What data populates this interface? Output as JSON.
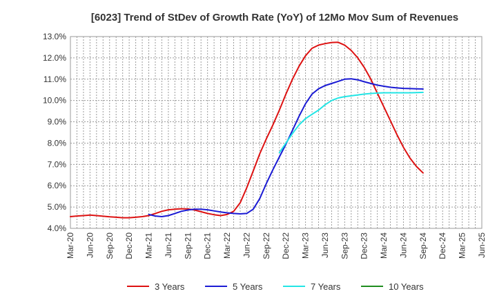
{
  "chart_data": {
    "type": "line",
    "title": "[6023]  Trend of StDev of Growth Rate (YoY) of 12Mo Mov Sum of Revenues",
    "xlabel": "",
    "ylabel": "",
    "ylim": [
      4.0,
      13.0
    ],
    "grid": true,
    "legend_position": "bottom",
    "y_ticks": [
      "4.0%",
      "5.0%",
      "6.0%",
      "7.0%",
      "8.0%",
      "9.0%",
      "10.0%",
      "11.0%",
      "12.0%",
      "13.0%"
    ],
    "x_ticks": [
      "Mar-20",
      "Jun-20",
      "Sep-20",
      "Dec-20",
      "Mar-21",
      "Jun-21",
      "Sep-21",
      "Dec-21",
      "Mar-22",
      "Jun-22",
      "Sep-22",
      "Dec-22",
      "Mar-23",
      "Jun-23",
      "Sep-23",
      "Dec-23",
      "Mar-24",
      "Jun-24",
      "Sep-24",
      "Dec-24",
      "Mar-25",
      "Jun-25"
    ],
    "series": [
      {
        "name": "3 Years",
        "color": "#dd1111",
        "start_index": 0,
        "values": [
          4.55,
          4.58,
          4.6,
          4.62,
          4.6,
          4.57,
          4.54,
          4.52,
          4.5,
          4.5,
          4.52,
          4.55,
          4.6,
          4.7,
          4.8,
          4.87,
          4.9,
          4.92,
          4.91,
          4.86,
          4.78,
          4.7,
          4.64,
          4.6,
          4.65,
          4.8,
          5.2,
          5.9,
          6.7,
          7.5,
          8.2,
          8.85,
          9.55,
          10.3,
          11.0,
          11.6,
          12.1,
          12.45,
          12.6,
          12.67,
          12.72,
          12.73,
          12.6,
          12.35,
          12.0,
          11.55,
          11.0,
          10.35,
          9.7,
          9.05,
          8.4,
          7.8,
          7.3,
          6.9,
          6.6
        ]
      },
      {
        "name": "5 Years",
        "color": "#1a1ad4",
        "start_index": 12,
        "values": [
          4.65,
          4.58,
          4.55,
          4.6,
          4.7,
          4.8,
          4.86,
          4.9,
          4.9,
          4.87,
          4.82,
          4.77,
          4.73,
          4.7,
          4.68,
          4.7,
          4.9,
          5.4,
          6.1,
          6.75,
          7.35,
          7.95,
          8.6,
          9.25,
          9.85,
          10.3,
          10.55,
          10.7,
          10.8,
          10.9,
          11.0,
          11.02,
          10.97,
          10.88,
          10.8,
          10.72,
          10.67,
          10.62,
          10.59,
          10.57,
          10.56,
          10.55,
          10.54
        ]
      },
      {
        "name": "7 Years",
        "color": "#22e5e5",
        "start_index": 32,
        "values": [
          7.55,
          8.0,
          8.45,
          8.85,
          9.15,
          9.35,
          9.55,
          9.8,
          10.0,
          10.12,
          10.18,
          10.22,
          10.26,
          10.3,
          10.33,
          10.35,
          10.36,
          10.36,
          10.36,
          10.36,
          10.36,
          10.37,
          10.38
        ]
      },
      {
        "name": "10 Years",
        "color": "#1e8c1e",
        "start_index": 0,
        "values": []
      }
    ]
  }
}
